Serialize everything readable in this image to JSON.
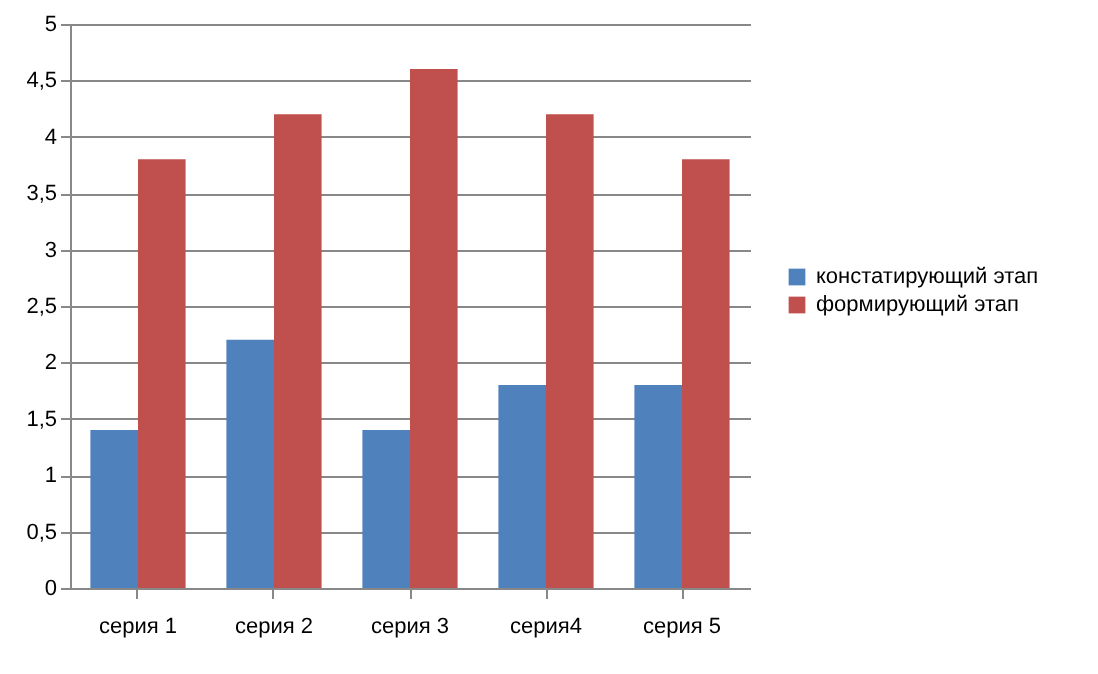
{
  "chart_data": {
    "type": "bar",
    "categories": [
      "серия 1",
      "серия 2",
      "серия 3",
      "серия4",
      "серия 5"
    ],
    "series": [
      {
        "name": "констатирующий этап",
        "color": "#4f81bd",
        "values": [
          1.4,
          2.2,
          1.4,
          1.8,
          1.8
        ]
      },
      {
        "name": "формирующий этап",
        "color": "#c0504d",
        "values": [
          3.8,
          4.2,
          4.6,
          4.2,
          3.8
        ]
      }
    ],
    "ylim": [
      0,
      5
    ],
    "yticks": [
      0,
      {
        "value": 0.5,
        "label": "0,5"
      },
      1,
      {
        "value": 1.5,
        "label": "1,5"
      },
      2,
      {
        "value": 2.5,
        "label": "2,5"
      },
      3,
      {
        "value": 3.5,
        "label": "3,5"
      },
      4,
      {
        "value": 4.5,
        "label": "4,5"
      },
      5
    ],
    "grid": "y",
    "legend": "right"
  }
}
